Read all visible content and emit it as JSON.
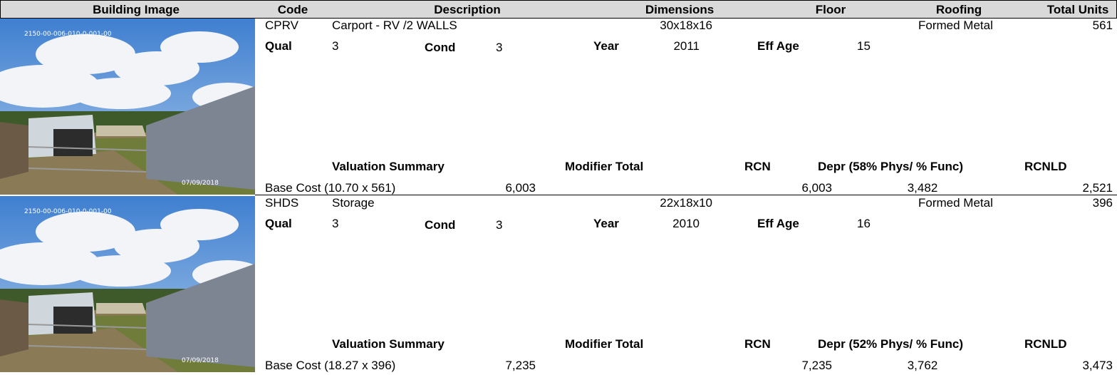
{
  "header": {
    "columns": [
      "Building Image",
      "Code",
      "Description",
      "Dimensions",
      "Floor",
      "Roofing",
      "Total Units"
    ]
  },
  "records": [
    {
      "image_label": "2150-00-006-010-0-001-00",
      "image_date": "07/09/2018",
      "code": "CPRV",
      "description": "Carport - RV /2 WALLS",
      "dimensions": "30x18x16",
      "roofing": "Formed Metal",
      "total_units": "561",
      "qual_label": "Qual",
      "qual": "3",
      "cond_label": "Cond",
      "cond": "3",
      "year_label": "Year",
      "year": "2011",
      "eff_age_label": "Eff Age",
      "eff_age": "15",
      "valuation": {
        "headers": [
          "Valuation Summary",
          "Modifier Total",
          "RCN",
          "Depr (58% Phys/ % Func)",
          "RCNLD"
        ],
        "base_cost": "Base Cost (10.70 x 561)",
        "base_value": "6,003",
        "rcn": "6,003",
        "depr": "3,482",
        "rcnld": "2,521"
      }
    },
    {
      "image_label": "2150-00-006-010-0-001-00",
      "image_date": "07/09/2018",
      "code": "SHDS",
      "description": "Storage",
      "dimensions": "22x18x10",
      "roofing": "Formed Metal",
      "total_units": "396",
      "qual_label": "Qual",
      "qual": "3",
      "cond_label": "Cond",
      "cond": "3",
      "year_label": "Year",
      "year": "2010",
      "eff_age_label": "Eff Age",
      "eff_age": "16",
      "valuation": {
        "headers": [
          "Valuation Summary",
          "Modifier Total",
          "RCN",
          "Depr (52% Phys/ % Func)",
          "RCNLD"
        ],
        "base_cost": "Base Cost (18.27 x 396)",
        "base_value": "7,235",
        "rcn": "7,235",
        "depr": "3,762",
        "rcnld": "3,473"
      }
    }
  ]
}
